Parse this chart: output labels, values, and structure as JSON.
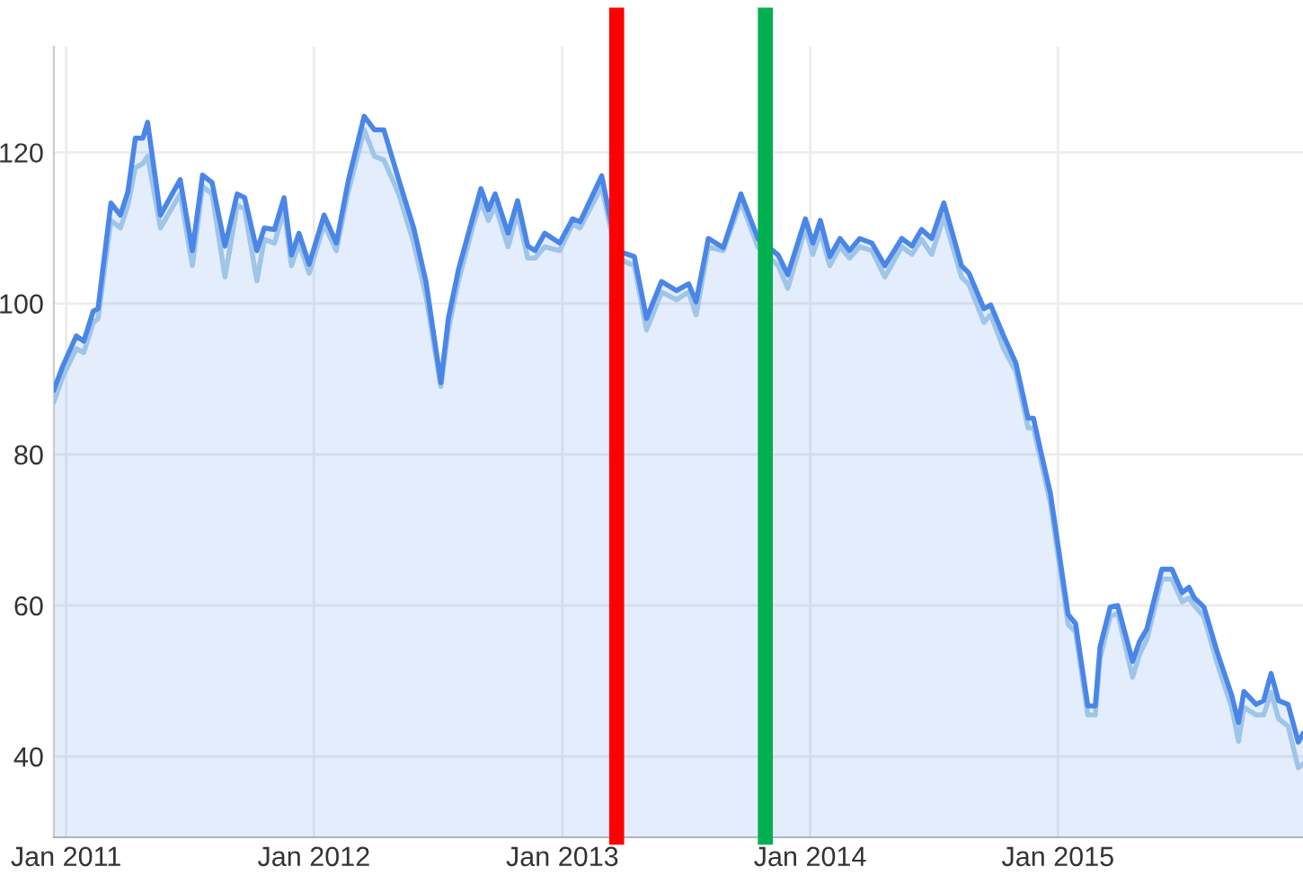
{
  "chart_data": {
    "type": "area",
    "x": [
      "2010-12-14",
      "2010-12-28",
      "2011-01-16",
      "2011-01-27",
      "2011-02-10",
      "2011-02-17",
      "2011-03-08",
      "2011-03-22",
      "2011-04-02",
      "2011-04-13",
      "2011-04-24",
      "2011-05-01",
      "2011-05-20",
      "2011-06-18",
      "2011-07-06",
      "2011-07-21",
      "2011-08-04",
      "2011-08-23",
      "2011-09-10",
      "2011-09-21",
      "2011-10-09",
      "2011-10-20",
      "2011-11-04",
      "2011-11-18",
      "2011-11-29",
      "2011-12-10",
      "2011-12-25",
      "2012-01-16",
      "2012-02-03",
      "2012-02-21",
      "2012-03-15",
      "2012-03-30",
      "2012-04-13",
      "2012-05-05",
      "2012-05-27",
      "2012-06-14",
      "2012-07-06",
      "2012-07-17",
      "2012-08-01",
      "2012-08-23",
      "2012-09-03",
      "2012-09-14",
      "2012-09-24",
      "2012-10-13",
      "2012-10-27",
      "2012-11-11",
      "2012-11-22",
      "2012-12-06",
      "2012-12-28",
      "2013-01-16",
      "2013-01-27",
      "2013-02-28",
      "2013-03-22",
      "2013-04-17",
      "2013-05-05",
      "2013-05-27",
      "2013-06-18",
      "2013-07-06",
      "2013-07-17",
      "2013-08-04",
      "2013-08-26",
      "2013-09-21",
      "2013-10-16",
      "2013-11-15",
      "2013-11-29",
      "2013-12-25",
      "2014-01-05",
      "2014-01-16",
      "2014-01-30",
      "2014-02-14",
      "2014-02-28",
      "2014-03-15",
      "2014-04-02",
      "2014-04-21",
      "2014-05-16",
      "2014-05-31",
      "2014-06-14",
      "2014-06-29",
      "2014-07-17",
      "2014-08-12",
      "2014-08-23",
      "2014-09-14",
      "2014-09-24",
      "2014-10-13",
      "2014-10-31",
      "2014-11-18",
      "2014-11-26",
      "2014-12-06",
      "2014-12-21",
      "2015-01-16",
      "2015-01-27",
      "2015-02-14",
      "2015-02-25",
      "2015-03-04",
      "2015-03-19",
      "2015-03-30",
      "2015-04-21",
      "2015-05-01",
      "2015-05-12",
      "2015-06-03",
      "2015-06-18",
      "2015-07-03",
      "2015-07-13",
      "2015-07-21",
      "2015-08-04",
      "2015-08-12",
      "2015-08-23",
      "2015-09-14",
      "2015-09-24",
      "2015-10-02",
      "2015-10-20",
      "2015-10-31",
      "2015-11-11",
      "2015-11-22",
      "2015-12-06",
      "2015-12-21",
      "2015-12-28"
    ],
    "series": [
      {
        "color": "#4a86e8",
        "values": [
          88.6,
          91.9,
          95.7,
          95,
          99,
          99.3,
          113.3,
          111.7,
          114.8,
          121.9,
          121.9,
          124,
          111.7,
          116.4,
          107,
          117,
          116,
          107.6,
          114.5,
          114,
          107,
          110,
          109.8,
          114,
          106.4,
          109.3,
          105.2,
          111.7,
          108,
          116.4,
          124.8,
          123,
          123,
          116.4,
          110,
          102.9,
          89.5,
          98,
          104.5,
          111.7,
          115.2,
          112.4,
          114.5,
          109.3,
          113.6,
          107.6,
          107,
          109.3,
          108,
          111.2,
          110.8,
          116.9,
          107,
          106.2,
          98,
          102.9,
          101.7,
          102.6,
          100.2,
          108.6,
          107.4,
          114.5,
          108.6,
          106.4,
          103.8,
          111.2,
          108,
          111,
          106.2,
          108.6,
          107,
          108.6,
          108,
          105,
          108.6,
          107.6,
          109.8,
          108.6,
          113.3,
          105,
          104,
          99.3,
          99.8,
          95.7,
          92.1,
          84.8,
          84.8,
          80.7,
          74.8,
          58.8,
          57.6,
          46.7,
          46.7,
          54.5,
          59.8,
          60,
          52.6,
          55.2,
          56.9,
          64.8,
          64.8,
          61.7,
          62.4,
          61,
          59.8,
          57.4,
          54,
          48.1,
          44.5,
          48.6,
          46.9,
          47.4,
          51,
          47.4,
          46.9,
          41.9,
          43
        ]
      },
      {
        "type": "line",
        "color": "#9fc5e8",
        "values": [
          87,
          90.5,
          94,
          93.5,
          97.5,
          98,
          111,
          110,
          113,
          118,
          118.5,
          119.5,
          110,
          114.5,
          105,
          115.5,
          114.5,
          103.5,
          113,
          112.5,
          103,
          108.5,
          108,
          112.5,
          105,
          108,
          104,
          110.5,
          107,
          115,
          123,
          119.5,
          119,
          114.5,
          108,
          101,
          89,
          96.5,
          103,
          110.5,
          113.5,
          111,
          113,
          107.5,
          112,
          106,
          106,
          107.5,
          107,
          110.5,
          110,
          115.5,
          106,
          105,
          96.5,
          101.5,
          100.5,
          101.5,
          98.5,
          107.5,
          107,
          113.5,
          107.5,
          105,
          102,
          110,
          106.5,
          109.5,
          105,
          107.5,
          106,
          107.5,
          107,
          103.5,
          107.5,
          106.5,
          108.5,
          106.5,
          111.5,
          103.5,
          102.5,
          97.5,
          98.5,
          94,
          91,
          83.5,
          83.5,
          79.5,
          73.5,
          57.5,
          56.5,
          45.5,
          45.5,
          53,
          58.5,
          59,
          50.5,
          53.5,
          55.5,
          63.5,
          63.5,
          60.5,
          61,
          60,
          58.5,
          56,
          52.5,
          46.5,
          42,
          46.5,
          45.5,
          45.5,
          48.5,
          45,
          44,
          38.5,
          39
        ]
      }
    ],
    "xlim": [
      "2010-12-14",
      "2015-12-28"
    ],
    "xticks": [
      {
        "value": "2011-01-01",
        "label": "Jan 2011"
      },
      {
        "value": "2012-01-01",
        "label": "Jan 2012"
      },
      {
        "value": "2013-01-01",
        "label": "Jan 2013"
      },
      {
        "value": "2014-01-01",
        "label": "Jan 2014"
      },
      {
        "value": "2015-01-01",
        "label": "Jan 2015"
      }
    ],
    "ylim": [
      29.3,
      134
    ],
    "yticks": [
      40,
      60,
      80,
      100,
      120
    ],
    "grid": true,
    "ref_lines": [
      {
        "axis": "x",
        "value": "2013-03-22",
        "color": "#ff0000"
      },
      {
        "axis": "x",
        "value": "2013-10-27",
        "color": "#00b050"
      }
    ]
  }
}
